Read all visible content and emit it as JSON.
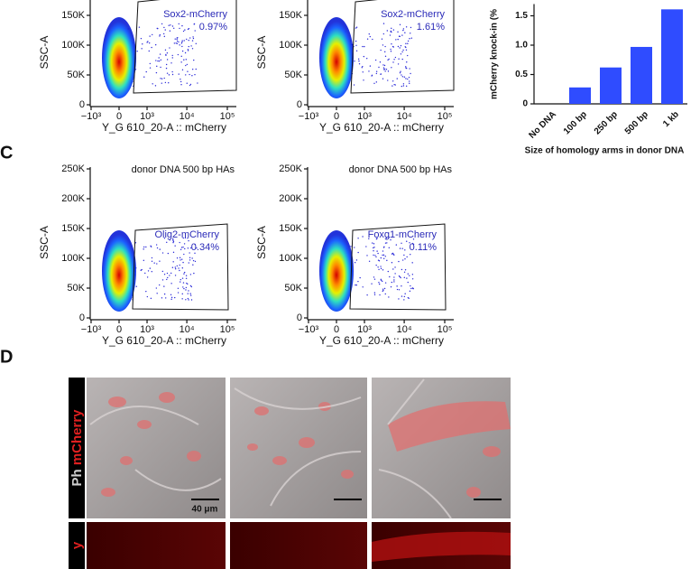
{
  "flow_plots": [
    {
      "ylabel": "SSC-A",
      "yticks": [
        0,
        {
          "value": 50000,
          "label": "50K"
        },
        {
          "value": 100000,
          "label": "100K"
        },
        {
          "value": 150000,
          "label": "150K"
        }
      ],
      "xticks": [
        {
          "value": -1000,
          "label": "−10³"
        },
        0,
        {
          "value": 1000,
          "label": "10³"
        },
        {
          "value": 10000,
          "label": "10⁴"
        },
        {
          "value": 100000,
          "label": "10⁵"
        }
      ],
      "xlabel": "Y_G 610_20-A :: mCherry",
      "gate_name": "Sox2-mCherry",
      "gate_percent": "0.97%"
    },
    {
      "ylabel": "SSC-A",
      "yticks": [
        0,
        {
          "value": 50000,
          "label": "50K"
        },
        {
          "value": 100000,
          "label": "100K"
        },
        {
          "value": 150000,
          "label": "150K"
        }
      ],
      "xticks": [
        {
          "value": -1000,
          "label": "−10³"
        },
        0,
        {
          "value": 1000,
          "label": "10³"
        },
        {
          "value": 10000,
          "label": "10⁴"
        },
        {
          "value": 100000,
          "label": "10⁵"
        }
      ],
      "xlabel": "Y_G 610_20-A :: mCherry",
      "gate_name": "Sox2-mCherry",
      "gate_percent": "1.61%"
    },
    {
      "header": "donor DNA 500 bp HAs",
      "ylabel": "SSC-A",
      "yticks": [
        0,
        {
          "value": 50000,
          "label": "50K"
        },
        {
          "value": 100000,
          "label": "100K"
        },
        {
          "value": 150000,
          "label": "150K"
        },
        {
          "value": 200000,
          "label": "200K"
        },
        {
          "value": 250000,
          "label": "250K"
        }
      ],
      "xticks": [
        {
          "value": -1000,
          "label": "−10³"
        },
        0,
        {
          "value": 1000,
          "label": "10³"
        },
        {
          "value": 10000,
          "label": "10⁴"
        },
        {
          "value": 100000,
          "label": "10⁵"
        }
      ],
      "xlabel": "Y_G 610_20-A :: mCherry",
      "gate_name": "Olig2-mCherry",
      "gate_percent": "0.34%"
    },
    {
      "header": "donor DNA 500 bp HAs",
      "ylabel": "SSC-A",
      "yticks": [
        0,
        {
          "value": 50000,
          "label": "50K"
        },
        {
          "value": 100000,
          "label": "100K"
        },
        {
          "value": 150000,
          "label": "150K"
        },
        {
          "value": 200000,
          "label": "200K"
        },
        {
          "value": 250000,
          "label": "250K"
        }
      ],
      "xticks": [
        {
          "value": -1000,
          "label": "−10³"
        },
        0,
        {
          "value": 1000,
          "label": "10³"
        },
        {
          "value": 10000,
          "label": "10⁴"
        },
        {
          "value": 100000,
          "label": "10⁵"
        }
      ],
      "xlabel": "Y_G 610_20-A :: mCherry",
      "gate_name": "Foxg1-mCherry",
      "gate_percent": "0.11%"
    }
  ],
  "bar_chart": {
    "type": "bar",
    "ylabel": "mCherry knock-in (%",
    "xlabel": "Size of homology arms in donor DNA",
    "categories": [
      "No DNA",
      "100 bp",
      "250 bp",
      "500 bp",
      "1 kb"
    ],
    "values": [
      0,
      0.28,
      0.62,
      0.97,
      1.61
    ],
    "color": "#2f4cff",
    "ylim": [
      0,
      1.7
    ],
    "yticks": [
      0,
      0.5,
      {
        "value": 1,
        "label": "1.0"
      },
      1.5
    ]
  },
  "panel_c": {
    "label": "C"
  },
  "panel_d": {
    "label": "D",
    "channel_ph": "Ph",
    "channel_mcherry": "mCherry",
    "scale_bar": "40 μm",
    "bottom_channel": "y"
  }
}
